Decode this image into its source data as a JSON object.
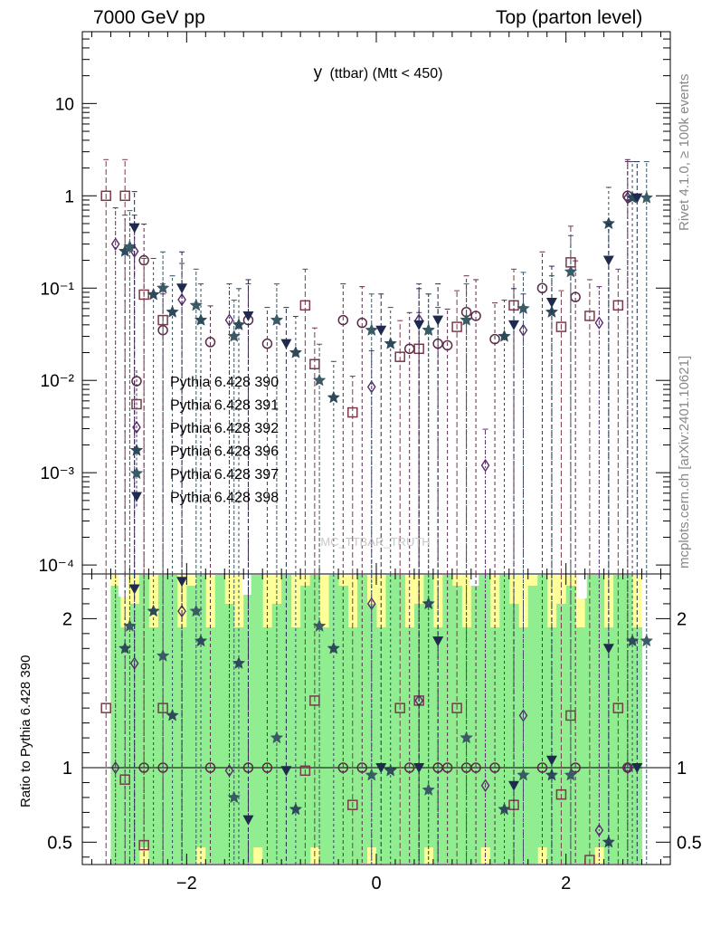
{
  "header": {
    "left": "7000 GeV pp",
    "right": "Top (parton level)"
  },
  "side_labels": {
    "rivet": "Rivet 4.1.0, ≥ 100k events",
    "mcplots": "mcplots.cern.ch [arXiv:2401.10621]"
  },
  "watermark": "MC_TTBAR_TRUTH",
  "ratio_ylabel": "Ratio to Pythia 6.428 390",
  "colors": {
    "s390": "#5a2a48",
    "s391": "#7a3a4a",
    "s392": "#5a2a6a",
    "s396": "#2e4a5a",
    "s397": "#3a5a66",
    "s398": "#1f2a4e",
    "band_green": "#90ee90",
    "band_yellow": "#ffff99"
  },
  "chart_data": {
    "type": "scatter",
    "title": "y (ttbar) (Mtt < 450)",
    "title_main": "y",
    "title_sub": "(ttbar) (Mtt < 450)",
    "main": {
      "yscale": "log",
      "ylim": [
        8e-05,
        60
      ],
      "yticks": [
        0.0001,
        0.001,
        0.01,
        0.1,
        1,
        10
      ],
      "ytick_labels": [
        "10⁻⁴",
        "10⁻³",
        "10⁻²",
        "10⁻¹",
        "1",
        "10"
      ]
    },
    "ratio": {
      "ylim": [
        0.35,
        2.3
      ],
      "yticks": [
        0.5,
        1,
        2
      ],
      "ytick_labels": [
        "0.5",
        "1",
        "2"
      ],
      "ylabel": "Ratio to Pythia 6.428 390"
    },
    "x": {
      "xlim": [
        -3.1,
        3.1
      ],
      "xticks": [
        -2,
        0,
        2
      ],
      "xtick_labels": [
        "−2",
        "0",
        "2"
      ]
    },
    "series": [
      {
        "name": "Pythia 6.428 390",
        "marker": "open-circle",
        "x": [
          -2.45,
          -2.25,
          -1.75,
          -1.35,
          -1.15,
          -0.35,
          -0.15,
          0.35,
          0.65,
          0.75,
          0.95,
          1.05,
          1.25,
          1.75,
          2.1,
          2.65
        ],
        "y": [
          0.2,
          0.035,
          0.026,
          0.045,
          0.025,
          0.045,
          0.042,
          0.022,
          0.025,
          0.024,
          0.055,
          0.05,
          0.028,
          0.1,
          0.08,
          1.0
        ],
        "ratio": [
          1,
          1,
          1,
          1,
          1,
          1,
          1,
          1,
          1,
          1,
          1,
          1,
          1,
          1,
          1,
          1
        ]
      },
      {
        "name": "Pythia 6.428 391",
        "marker": "open-square",
        "x": [
          -2.85,
          -2.65,
          -2.45,
          -2.25,
          -0.75,
          -0.65,
          -0.25,
          0.25,
          0.45,
          0.85,
          1.45,
          1.95,
          2.05,
          2.25,
          2.55
        ],
        "y": [
          1.0,
          1.0,
          0.085,
          0.045,
          0.065,
          0.015,
          0.0045,
          0.018,
          0.022,
          0.038,
          0.065,
          0.038,
          0.19,
          0.05,
          0.065
        ],
        "ratio": [
          1.4,
          0.92,
          0.48,
          1.4,
          0.98,
          1.45,
          0.75,
          1.4,
          1.45,
          1.4,
          0.75,
          0.82,
          1.35,
          0.38,
          1.4
        ]
      },
      {
        "name": "Pythia 6.428 392",
        "marker": "open-diamond",
        "x": [
          -2.75,
          -2.55,
          -2.05,
          -1.55,
          -0.05,
          0.45,
          1.15,
          1.55,
          2.35,
          2.65
        ],
        "y": [
          0.3,
          0.25,
          0.075,
          0.045,
          0.0085,
          0.045,
          0.0012,
          0.035,
          0.042,
          0.95
        ],
        "ratio": [
          1.0,
          1.7,
          2.05,
          0.98,
          2.1,
          1.45,
          0.88,
          1.35,
          0.58,
          1.0
        ]
      },
      {
        "name": "Pythia 6.428 396",
        "marker": "star",
        "x": [
          -2.65,
          -2.35,
          -2.15,
          -1.85,
          -1.45,
          -0.85,
          -0.45,
          0.15,
          0.55,
          1.35,
          1.85,
          2.45,
          2.7
        ],
        "y": [
          0.25,
          0.085,
          0.055,
          0.045,
          0.04,
          0.02,
          0.0065,
          0.025,
          0.035,
          0.03,
          0.055,
          0.5,
          0.95
        ],
        "ratio": [
          1.8,
          2.05,
          1.35,
          1.85,
          1.7,
          0.72,
          1.8,
          0.98,
          2.1,
          0.72,
          0.95,
          0.5,
          1.85
        ]
      },
      {
        "name": "Pythia 6.428 397",
        "marker": "star",
        "x": [
          -2.6,
          -2.25,
          -1.9,
          -1.5,
          -1.05,
          -0.6,
          -0.05,
          0.55,
          0.95,
          1.55,
          2.05,
          2.85
        ],
        "y": [
          0.28,
          0.1,
          0.065,
          0.03,
          0.045,
          0.01,
          0.035,
          0.035,
          0.045,
          0.06,
          0.15,
          0.95
        ],
        "ratio": [
          1.95,
          1.75,
          2.05,
          0.8,
          1.2,
          1.95,
          0.95,
          0.85,
          1.2,
          0.95,
          0.95,
          1.85
        ]
      },
      {
        "name": "Pythia 6.428 398",
        "marker": "filled-triangle-down",
        "x": [
          -2.55,
          -2.05,
          -1.35,
          -0.95,
          0.05,
          0.45,
          0.65,
          1.45,
          1.85,
          2.45,
          2.75
        ],
        "y": [
          0.45,
          0.1,
          0.05,
          0.025,
          0.035,
          0.04,
          0.045,
          0.04,
          0.07,
          0.2,
          0.95
        ],
        "ratio": [
          2.2,
          2.25,
          0.65,
          0.98,
          1.0,
          1.0,
          1.85,
          0.88,
          1.05,
          1.8,
          1.0
        ]
      }
    ]
  }
}
